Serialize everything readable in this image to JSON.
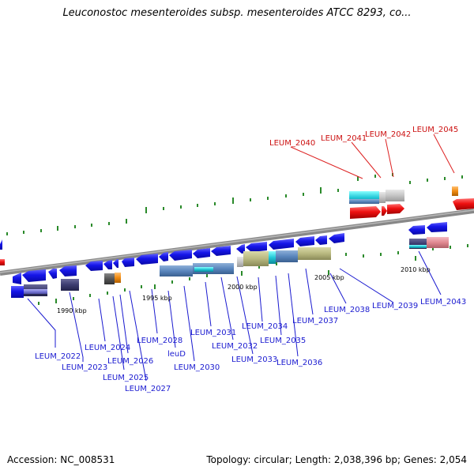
{
  "title": "Leuconostoc mesenteroides subsp. mesenteroides ATCC 8293, co...",
  "footer": {
    "accession": "Accession: NC_008531",
    "summary": "Topology: circular; Length: 2,038,396 bp; Genes: 2,054"
  },
  "colors": {
    "forward_gene": "#1010e0",
    "reverse_gene": "#1010e0",
    "highlight_gene": "#ee1111",
    "label_normal": "#1a1ad0",
    "label_highlight": "#cc1111",
    "backbone": "#8a8a8a",
    "tick": "#2a8a2a",
    "leader_normal": "#1a1ad0",
    "leader_highlight": "#dd2222"
  },
  "scale_labels": [
    "1990 kbp",
    "1995 kbp",
    "2000 kbp",
    "2005 kbp",
    "2010 kbp"
  ],
  "gene_labels_bottom": [
    "LEUM_2022",
    "LEUM_2023",
    "LEUM_2024",
    "LEUM_2025",
    "LEUM_2026",
    "LEUM_2027",
    "LEUM_2028",
    "leuD",
    "LEUM_2030",
    "LEUM_2031",
    "LEUM_2032",
    "LEUM_2033",
    "LEUM_2034",
    "LEUM_2035",
    "LEUM_2036",
    "LEUM_2037",
    "LEUM_2038",
    "LEUM_2039",
    "LEUM_2043"
  ],
  "gene_labels_top": [
    "LEUM_2040",
    "LEUM_2041",
    "LEUM_2042",
    "LEUM_2045"
  ]
}
